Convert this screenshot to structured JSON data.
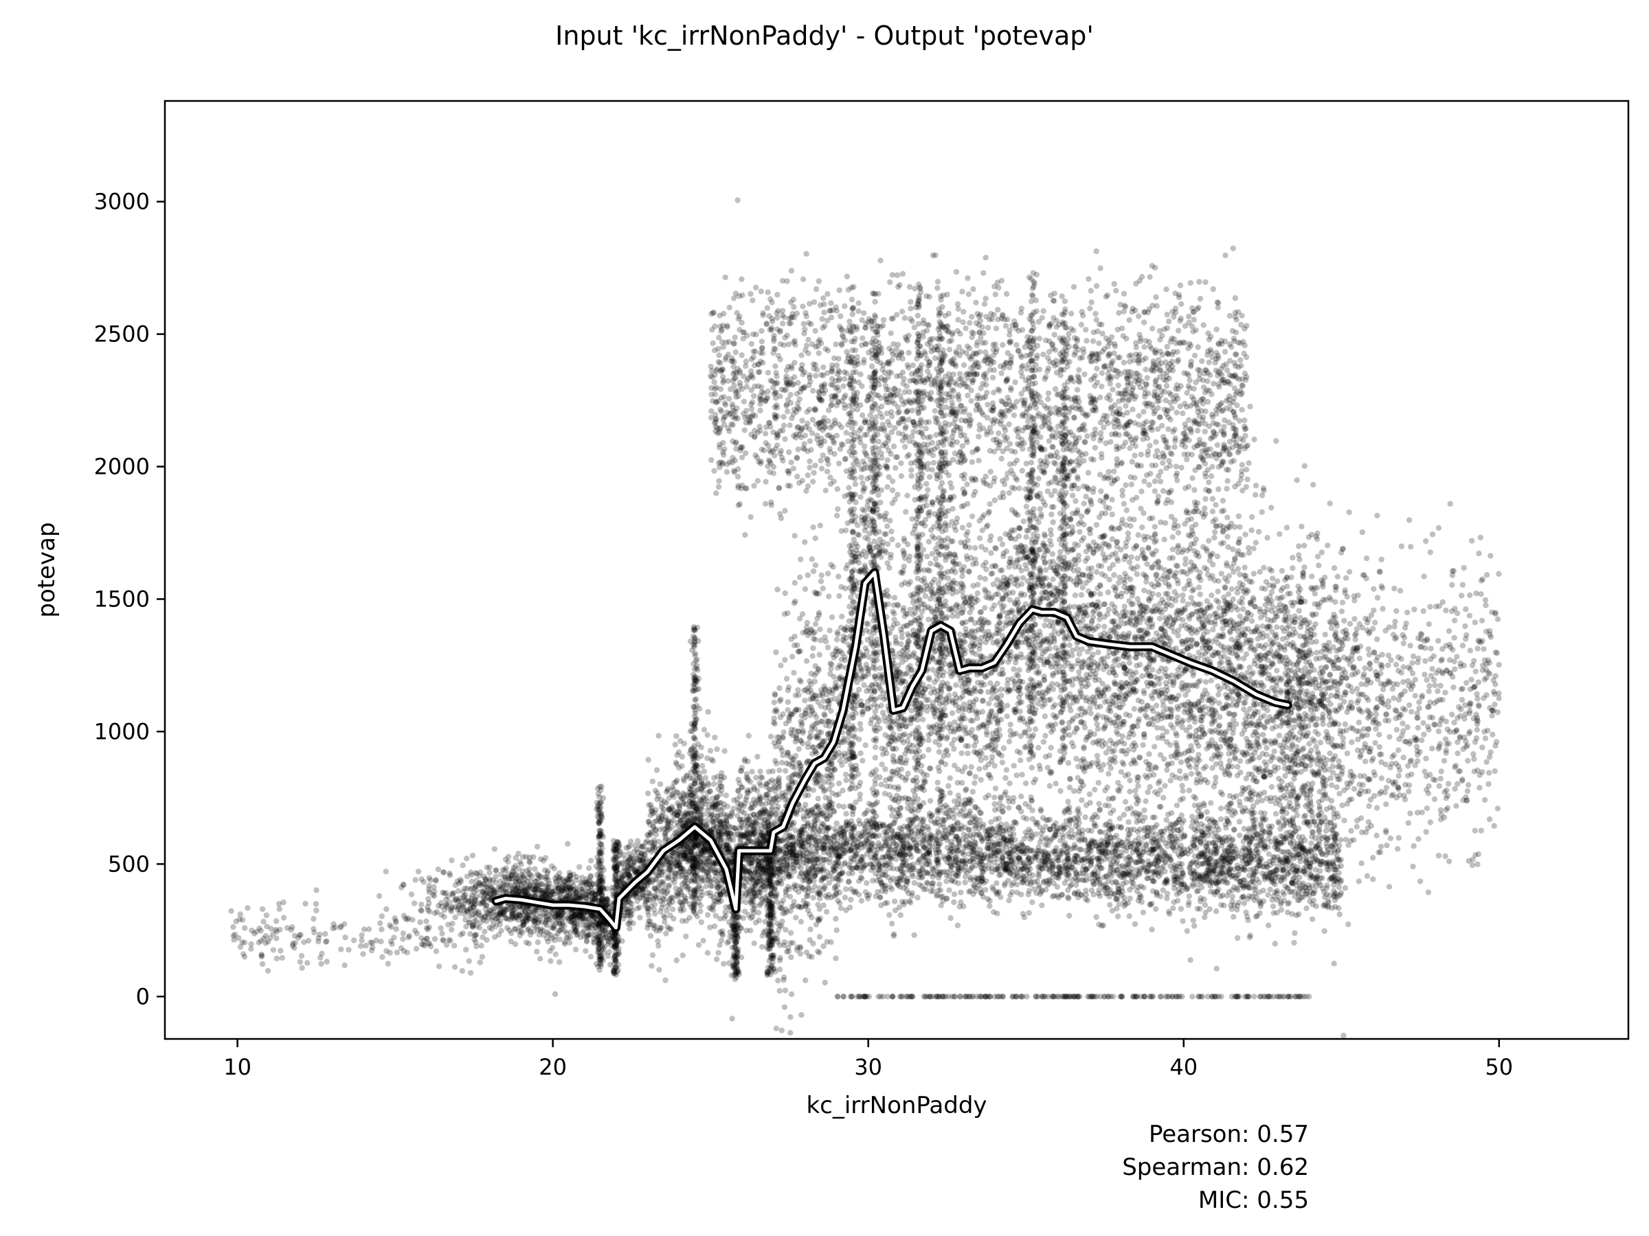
{
  "title": "Input 'kc_irrNonPaddy' - Output 'potevap'",
  "chart_data": {
    "type": "scatter",
    "title": "Input 'kc_irrNonPaddy' - Output 'potevap'",
    "xlabel": "kc_irrNonPaddy",
    "ylabel": "potevap",
    "xlim": [
      7.7,
      54.1
    ],
    "ylim": [
      -160,
      3380
    ],
    "xticks": [
      10,
      20,
      30,
      40,
      50
    ],
    "yticks": [
      0,
      500,
      1000,
      1500,
      2000,
      2500,
      3000
    ],
    "point_color": "#000000",
    "point_alpha": 0.25,
    "trend_color": "#ffffff",
    "trend_outline_color": "#000000",
    "grid": false,
    "trend_line": {
      "x": [
        18.2,
        18.5,
        19.0,
        19.5,
        20.0,
        20.5,
        21.0,
        21.5,
        21.8,
        22.0,
        22.1,
        22.6,
        23.0,
        23.5,
        24.0,
        24.5,
        25.0,
        25.5,
        25.8,
        25.9,
        26.5,
        26.9,
        27.0,
        27.3,
        27.6,
        28.0,
        28.3,
        28.6,
        28.9,
        29.2,
        29.6,
        29.9,
        30.2,
        30.5,
        30.8,
        31.1,
        31.4,
        31.7,
        32.0,
        32.3,
        32.6,
        32.9,
        33.2,
        33.6,
        34.0,
        34.4,
        34.8,
        35.2,
        35.5,
        35.9,
        36.3,
        36.6,
        37.0,
        37.6,
        38.3,
        39.0,
        39.6,
        40.2,
        40.9,
        41.6,
        42.3,
        42.9,
        43.3
      ],
      "y": [
        360,
        370,
        365,
        355,
        345,
        345,
        340,
        330,
        290,
        260,
        370,
        430,
        470,
        550,
        590,
        640,
        590,
        480,
        330,
        550,
        550,
        550,
        620,
        640,
        730,
        820,
        880,
        900,
        960,
        1080,
        1320,
        1560,
        1600,
        1360,
        1080,
        1090,
        1170,
        1230,
        1380,
        1400,
        1380,
        1230,
        1240,
        1240,
        1260,
        1330,
        1410,
        1460,
        1450,
        1450,
        1430,
        1360,
        1340,
        1330,
        1320,
        1320,
        1290,
        1260,
        1230,
        1190,
        1140,
        1110,
        1100
      ]
    },
    "stats": {
      "pearson": "Pearson: 0.57",
      "spearman": "Spearman: 0.62",
      "mic": "MIC: 0.55"
    }
  }
}
